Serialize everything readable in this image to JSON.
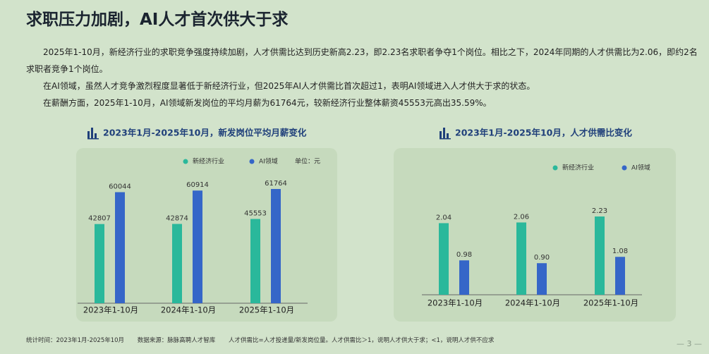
{
  "title": "求职压力加剧，AI人才首次供大于求",
  "paragraphs": [
    "2025年1-10月，新经济行业的求职竞争强度持续加剧，人才供需比达到历史新高2.23，即2.23名求职者争夺1个岗位。相比之下，2024年同期的人才供需比为2.06，即约2名求职者竞争1个岗位。",
    "在AI领域，虽然人才竞争激烈程度显著低于新经济行业，但2025年AI人才供需比首次超过1，表明AI领域进入人才供大于求的状态。",
    "在薪酬方面，2025年1-10月，AI领域新发岗位的平均月薪为61764元，较新经济行业整体薪资45553元高出35.59%。"
  ],
  "chart_data": [
    {
      "type": "bar",
      "title": "2023年1月-2025年10月，新发岗位平均月薪变化",
      "annotation": "单位：元",
      "categories": [
        "2023年1-10月",
        "2024年1-10月",
        "2025年1-10月"
      ],
      "series": [
        {
          "name": "新经济行业",
          "color": "#2ab89b",
          "values": [
            42807,
            42874,
            45553
          ]
        },
        {
          "name": "AI领域",
          "color": "#3566c8",
          "values": [
            60044,
            60914,
            61764
          ]
        }
      ]
    },
    {
      "type": "bar",
      "title": "2023年1月-2025年10月，人才供需比变化",
      "categories": [
        "2023年1-10月",
        "2024年1-10月",
        "2025年1-10月"
      ],
      "series": [
        {
          "name": "新经济行业",
          "color": "#2ab89b",
          "values": [
            2.04,
            2.06,
            2.23
          ]
        },
        {
          "name": "AI领域",
          "color": "#3566c8",
          "values": [
            0.98,
            0.9,
            1.08
          ],
          "value_labels": [
            "0.98",
            "0.90",
            "1.08"
          ]
        }
      ]
    }
  ],
  "footer": [
    "统计时间：2023年1月-2025年10月",
    "数据来源：脉脉高聘人才智库",
    "人才供需比=人才投递量/新发岗位量。人才供需比＞1，说明人才供大于求；<1，说明人才供不应求"
  ],
  "page_number": "— 3 —"
}
